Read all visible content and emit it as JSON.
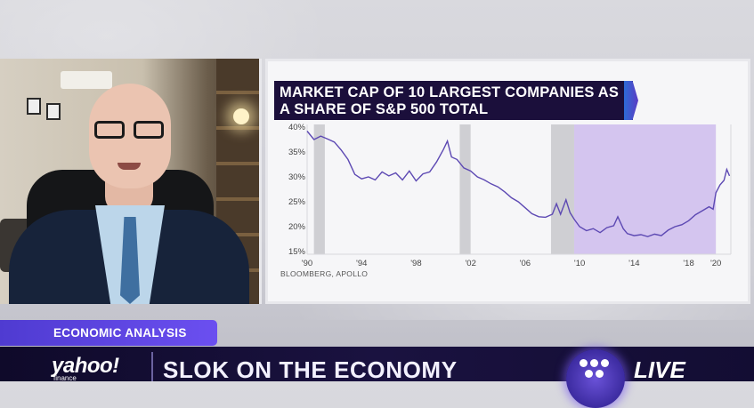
{
  "chart_data": {
    "type": "line",
    "title": "MARKET CAP OF 10 LARGEST COMPANIES AS A SHARE OF S&P 500 TOTAL",
    "source": "BLOOMBERG, APOLLO",
    "y_tick_labels": [
      "40%",
      "35%",
      "30%",
      "25%",
      "20%",
      "15%"
    ],
    "x_tick_labels": [
      "'90",
      "'94",
      "'98",
      "'02",
      "'06",
      "'10",
      "'14",
      "'18",
      "'20"
    ],
    "ylim": [
      15,
      40
    ],
    "xlim": [
      1990,
      2021.1
    ],
    "x_ticks": [
      1990,
      1994,
      1998,
      2002,
      2006,
      2010,
      2014,
      2018,
      2020
    ],
    "recessions": [
      [
        1990.5,
        1991.3
      ],
      [
        2001.2,
        2002.0
      ],
      [
        2007.9,
        2009.6
      ]
    ],
    "highlight": [
      2009.6,
      2020.0
    ],
    "series": [
      {
        "values": [
          [
            1990.0,
            39.2
          ],
          [
            1990.5,
            37.5
          ],
          [
            1991.0,
            38.2
          ],
          [
            1991.5,
            37.6
          ],
          [
            1992.0,
            37.0
          ],
          [
            1992.5,
            35.4
          ],
          [
            1993.0,
            33.5
          ],
          [
            1993.5,
            30.5
          ],
          [
            1994.0,
            29.6
          ],
          [
            1994.5,
            30.0
          ],
          [
            1995.0,
            29.4
          ],
          [
            1995.5,
            31.0
          ],
          [
            1996.0,
            30.2
          ],
          [
            1996.5,
            30.8
          ],
          [
            1997.0,
            29.4
          ],
          [
            1997.5,
            31.2
          ],
          [
            1998.0,
            29.2
          ],
          [
            1998.5,
            30.6
          ],
          [
            1999.0,
            31.0
          ],
          [
            1999.5,
            33.0
          ],
          [
            2000.0,
            35.5
          ],
          [
            2000.3,
            37.2
          ],
          [
            2000.6,
            34.0
          ],
          [
            2001.0,
            33.5
          ],
          [
            2001.5,
            31.8
          ],
          [
            2002.0,
            31.2
          ],
          [
            2002.5,
            30.0
          ],
          [
            2003.0,
            29.4
          ],
          [
            2003.5,
            28.6
          ],
          [
            2004.0,
            28.0
          ],
          [
            2004.5,
            27.0
          ],
          [
            2005.0,
            25.8
          ],
          [
            2005.5,
            25.0
          ],
          [
            2006.0,
            23.8
          ],
          [
            2006.5,
            22.6
          ],
          [
            2007.0,
            22.0
          ],
          [
            2007.5,
            21.9
          ],
          [
            2008.0,
            22.5
          ],
          [
            2008.3,
            24.6
          ],
          [
            2008.6,
            22.5
          ],
          [
            2009.0,
            25.4
          ],
          [
            2009.3,
            22.8
          ],
          [
            2009.6,
            21.5
          ],
          [
            2010.0,
            20.0
          ],
          [
            2010.5,
            19.2
          ],
          [
            2011.0,
            19.6
          ],
          [
            2011.5,
            18.8
          ],
          [
            2012.0,
            19.8
          ],
          [
            2012.5,
            20.2
          ],
          [
            2012.8,
            22.0
          ],
          [
            2013.2,
            19.6
          ],
          [
            2013.5,
            18.6
          ],
          [
            2014.0,
            18.2
          ],
          [
            2014.5,
            18.4
          ],
          [
            2015.0,
            18.0
          ],
          [
            2015.5,
            18.5
          ],
          [
            2016.0,
            18.2
          ],
          [
            2016.5,
            19.3
          ],
          [
            2017.0,
            20.0
          ],
          [
            2017.5,
            20.4
          ],
          [
            2018.0,
            21.2
          ],
          [
            2018.5,
            22.4
          ],
          [
            2019.0,
            23.2
          ],
          [
            2019.5,
            24.0
          ],
          [
            2019.8,
            23.5
          ],
          [
            2020.0,
            26.8
          ],
          [
            2020.3,
            28.4
          ],
          [
            2020.6,
            29.3
          ],
          [
            2020.8,
            31.5
          ],
          [
            2021.0,
            30.2
          ]
        ]
      }
    ]
  },
  "lower_third": {
    "section_label": "ECONOMIC ANALYSIS",
    "brand": "yahoo!",
    "brand_sub": "finance",
    "headline": "SLOK ON THE ECONOMY",
    "live_label": "LIVE"
  },
  "colors": {
    "line": "#5d49b3",
    "recession": "#cfcfd3",
    "highlight": "#d4c5ef",
    "title_band": "#1b0f3b",
    "accent": "#5b3fe0"
  }
}
